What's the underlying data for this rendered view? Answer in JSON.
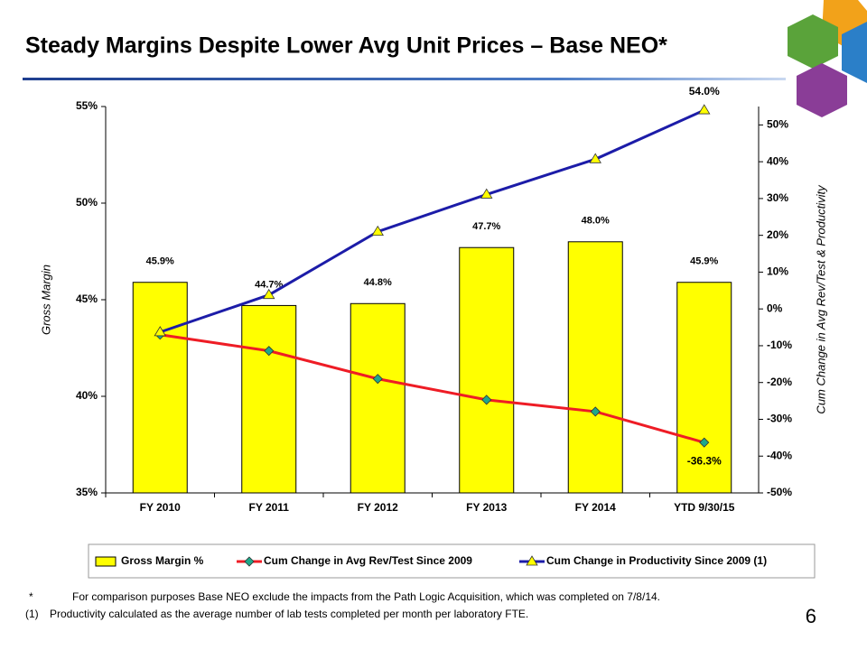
{
  "chart_data": {
    "type": "bar-line",
    "title": "Steady Margins Despite Lower Avg Unit Prices – Base NEO*",
    "categories": [
      "FY 2010",
      "FY 2011",
      "FY 2012",
      "FY 2013",
      "FY 2014",
      "YTD 9/30/15"
    ],
    "ylabel": "Gross Margin",
    "y2label": "Cum Change in Avg Rev/Test & Productivity",
    "ylim": [
      35,
      55
    ],
    "yticks": [
      {
        "value": 35,
        "label": "35%"
      },
      {
        "value": 40,
        "label": "40%"
      },
      {
        "value": 45,
        "label": "45%"
      },
      {
        "value": 50,
        "label": "50%"
      },
      {
        "value": 55,
        "label": "55%"
      }
    ],
    "y2lim": [
      -50,
      55
    ],
    "y2ticks": [
      {
        "value": -50,
        "label": "-50%"
      },
      {
        "value": -40,
        "label": "-40%"
      },
      {
        "value": -30,
        "label": "-30%"
      },
      {
        "value": -20,
        "label": "-20%"
      },
      {
        "value": -10,
        "label": "-10%"
      },
      {
        "value": 0,
        "label": "0%"
      },
      {
        "value": 10,
        "label": "10%"
      },
      {
        "value": 20,
        "label": "20%"
      },
      {
        "value": 30,
        "label": "30%"
      },
      {
        "value": 40,
        "label": "40%"
      },
      {
        "value": 50,
        "label": "50%"
      }
    ],
    "grid": false,
    "series": [
      {
        "name": "Gross Margin %",
        "type": "bar",
        "color": "#ffff00",
        "values": [
          45.9,
          44.7,
          44.8,
          47.7,
          48.0,
          45.9
        ],
        "value_labels": [
          "45.9%",
          "44.7%",
          "44.8%",
          "47.7%",
          "48.0%",
          "45.9%"
        ]
      },
      {
        "name": "Cum Change in Avg Rev/Test Since 2009",
        "type": "line",
        "marker": "diamond",
        "axis": "y2",
        "color": "#ee1c25",
        "marker_color": "#1ea88a",
        "values": [
          -7,
          -11.4,
          -19,
          -24.7,
          -27.9,
          -36.3
        ],
        "value_labels": [
          null,
          null,
          null,
          null,
          null,
          "-36.3%"
        ]
      },
      {
        "name": "Cum Change in Productivity Since 2009 (1)",
        "type": "line",
        "marker": "triangle",
        "axis": "y2",
        "color": "#1c1ca8",
        "marker_color": "#ffff00",
        "values": [
          -6.3,
          3.8,
          21,
          31.1,
          40.7,
          54.0
        ],
        "value_labels": [
          null,
          null,
          null,
          null,
          null,
          "54.0%"
        ]
      }
    ]
  },
  "notes": [
    {
      "marker": "*",
      "text": "For comparison purposes Base NEO exclude the impacts from the Path Logic Acquisition, which was completed on 7/8/14."
    },
    {
      "marker": "(1)",
      "text": "Productivity calculated as the average number of lab tests completed per month per laboratory FTE."
    }
  ],
  "page_number": "6"
}
